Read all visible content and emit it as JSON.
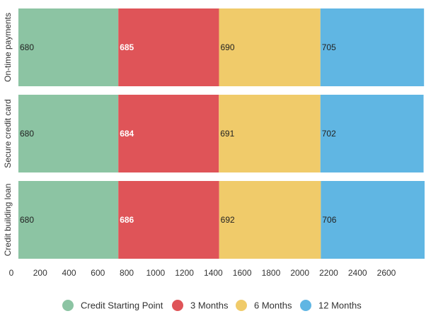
{
  "chart_data": {
    "type": "bar",
    "orientation": "horizontal",
    "stacked": true,
    "categories": [
      "On-time payments",
      "Secure credit card",
      "Credit building loan"
    ],
    "series": [
      {
        "name": "Credit Starting Point",
        "color": "#8cc4a3",
        "label_color": "#222222",
        "values": [
          680,
          680,
          680
        ]
      },
      {
        "name": "3 Months",
        "color": "#df5458",
        "label_color": "#ffffff",
        "values": [
          685,
          684,
          686
        ]
      },
      {
        "name": "6 Months",
        "color": "#f0cb6a",
        "label_color": "#222222",
        "values": [
          690,
          691,
          692
        ]
      },
      {
        "name": "12 Months",
        "color": "#60b6e3",
        "label_color": "#222222",
        "values": [
          705,
          702,
          706
        ]
      }
    ],
    "x_ticks": [
      0,
      200,
      400,
      600,
      800,
      1000,
      1200,
      1400,
      1600,
      1800,
      2000,
      2200,
      2400,
      2600
    ],
    "xlim": [
      0,
      2800
    ],
    "legend_position": "bottom",
    "title": "",
    "xlabel": "",
    "ylabel": ""
  }
}
